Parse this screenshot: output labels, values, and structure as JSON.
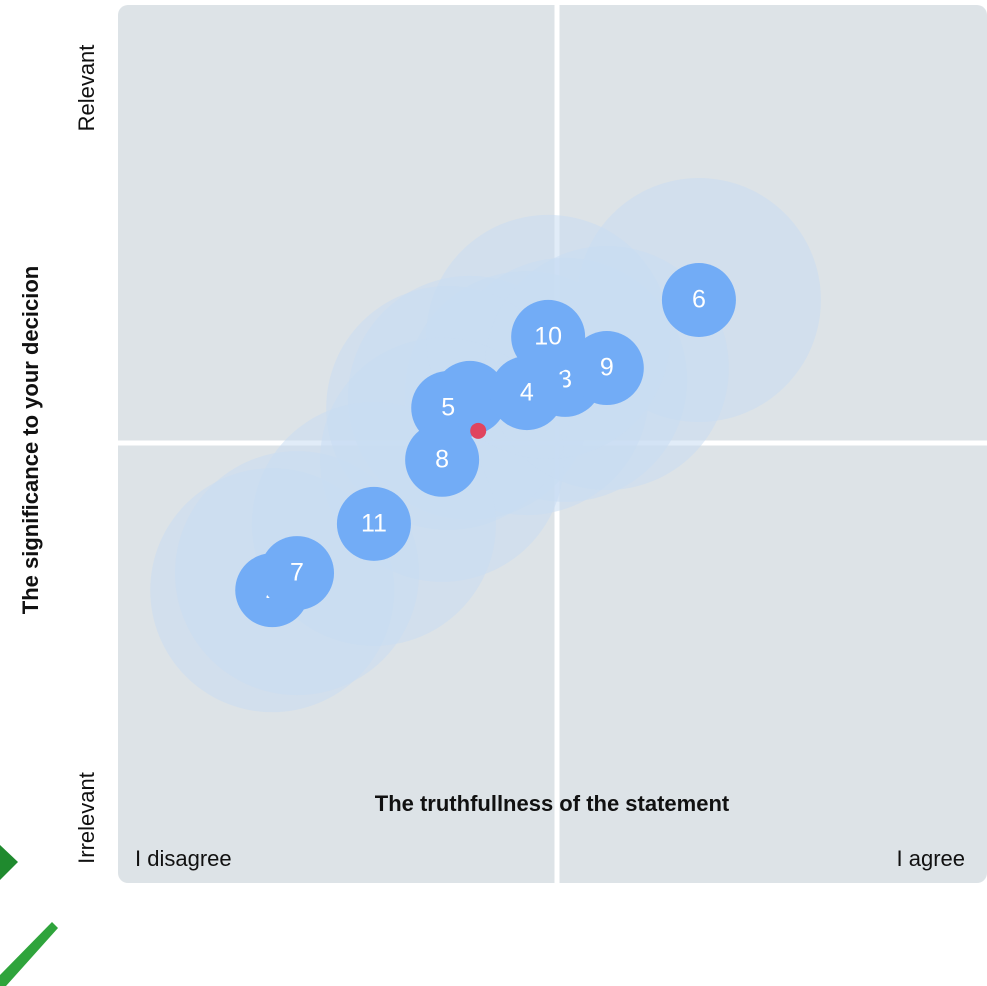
{
  "chart_data": {
    "type": "scatter",
    "x_label": "The truthfullness of the statement",
    "y_label": "The significance to your decicion",
    "x_low_label": "I disagree",
    "x_high_label": "I agree",
    "y_high_label": "Relevant",
    "y_low_label": "Irrelevant",
    "xlim": [
      -1,
      1
    ],
    "ylim": [
      -1,
      1
    ],
    "color": "#72acf6",
    "halo_color": "#c9dcf3",
    "labels": [
      "1",
      "2",
      "3",
      "4",
      "5",
      "6",
      "7",
      "8",
      "9",
      "10",
      "11"
    ],
    "x": [
      -0.19,
      -0.645,
      0.029,
      -0.059,
      -0.24,
      0.337,
      -0.588,
      -0.254,
      0.125,
      -0.01,
      -0.411
    ],
    "y": [
      0.105,
      -0.333,
      0.146,
      0.116,
      0.082,
      0.328,
      -0.294,
      -0.036,
      0.173,
      0.244,
      -0.182
    ],
    "center_point": {
      "x": -0.171,
      "y": 0.03,
      "color": "#e0445e"
    }
  }
}
